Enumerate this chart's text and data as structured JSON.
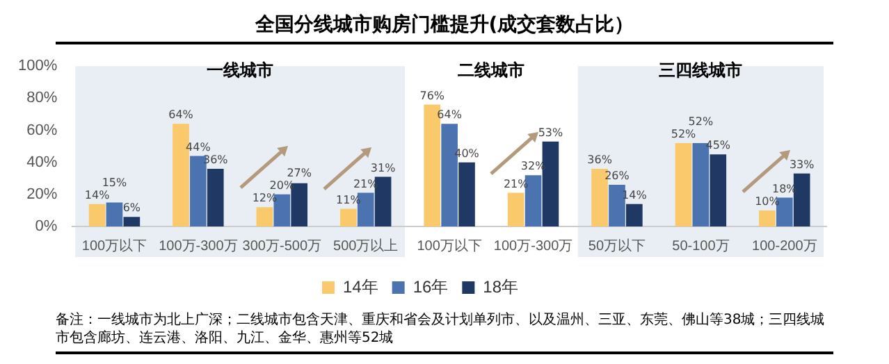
{
  "chart_data": {
    "type": "bar",
    "title": "全国分线城市购房门槛提升(成交套数占比）",
    "categories": [
      "100万以下",
      "100万-300万",
      "300万-500万",
      "500万以上",
      "100万以下",
      "100万-300万",
      "50万以下",
      "50-100万",
      "100-200万"
    ],
    "series": [
      {
        "name": "14年",
        "color": "#f9c96b",
        "values": [
          14,
          64,
          12,
          11,
          76,
          21,
          36,
          52,
          10
        ],
        "value_labels": [
          "14%",
          "64%",
          "12%",
          "11%",
          "76%",
          "21%",
          "36%",
          "52%",
          "10%"
        ]
      },
      {
        "name": "16年",
        "color": "#4a73b0",
        "values": [
          15,
          44,
          20,
          21,
          64,
          32,
          26,
          52,
          18
        ],
        "value_labels": [
          "15%",
          "44%",
          "20%",
          "21%",
          "64%",
          "32%",
          "26%",
          "52%",
          "18%"
        ]
      },
      {
        "name": "18年",
        "color": "#1f3864",
        "values": [
          6,
          36,
          27,
          31,
          40,
          53,
          14,
          45,
          33
        ],
        "value_labels": [
          "6%",
          "36%",
          "27%",
          "31%",
          "40%",
          "53%",
          "14%",
          "45%",
          "33%"
        ]
      }
    ],
    "ylim": [
      0,
      100
    ],
    "yticks": [
      {
        "value": 0,
        "label": "0%"
      },
      {
        "value": 20,
        "label": "20%"
      },
      {
        "value": 40,
        "label": "40%"
      },
      {
        "value": 60,
        "label": "60%"
      },
      {
        "value": 80,
        "label": "80%"
      },
      {
        "value": 100,
        "label": "100%"
      }
    ],
    "grid": false,
    "legend": "bottom",
    "bands": [
      {
        "axis": "x",
        "from": "100万以下",
        "to": "500万以上",
        "label": "一线城市",
        "color": "#e9eef5"
      },
      {
        "axis": "x",
        "from": "50万以下",
        "to": "100-200万",
        "label": "三四线城市",
        "color": "#e9eef5"
      }
    ],
    "annotations": [
      "二线城市",
      "备注：一线城市为北上广深；二线城市包含天津、重庆和省会及计划单列市、以及温州、三亚、东莞、佛山等38城；三四线城市包含廊坊、连云港、洛阳、九江、金华、惠州等52城"
    ]
  }
}
